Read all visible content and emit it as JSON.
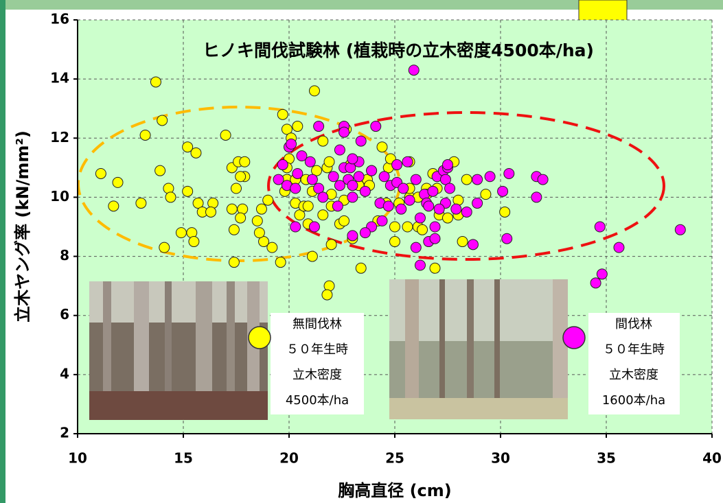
{
  "chart_data": {
    "type": "scatter",
    "title": "ヒノキ間伐試験林 (植栽時の立木密度4500本/ha)",
    "x_label": "胸高直径 (cm)",
    "y_label": "立木ヤング率 (kN/mm²)",
    "xlim": [
      10,
      40
    ],
    "xticks": [
      10,
      15,
      20,
      25,
      30,
      35,
      40
    ],
    "ylim": [
      2,
      16
    ],
    "yticks": [
      2,
      4,
      6,
      8,
      10,
      12,
      14,
      16
    ],
    "grid": true,
    "notes": [
      [
        "５０年生時",
        "立木密度",
        "4500本/ha"
      ],
      [
        "５０年生時",
        "立木密度",
        "1600本/ha"
      ]
    ],
    "series": [
      {
        "name": "無間伐林",
        "color": "#ffff00",
        "x": [
          11.1,
          11.9,
          11.7,
          13.0,
          13.2,
          13.7,
          14.0,
          13.9,
          14.3,
          14.4,
          14.1,
          14.9,
          15.2,
          15.2,
          15.4,
          15.6,
          15.5,
          15.7,
          15.9,
          16.4,
          16.3,
          17.0,
          17.3,
          17.5,
          17.3,
          17.6,
          17.8,
          17.7,
          17.4,
          17.4,
          17.9,
          17.9,
          17.7,
          18.5,
          18.7,
          18.8,
          18.6,
          19.0,
          19.2,
          19.6,
          19.7,
          19.9,
          20.1,
          20.0,
          19.9,
          19.8,
          19.9,
          20.4,
          20.3,
          20.3,
          20.5,
          20.7,
          20.9,
          20.8,
          21.1,
          20.9,
          21.2,
          21.3,
          21.6,
          21.6,
          21.8,
          21.9,
          22.0,
          22.0,
          21.1,
          21.9,
          21.8,
          22.0,
          22.4,
          22.6,
          22.7,
          22.6,
          23.0,
          22.9,
          23.3,
          23.4,
          23.7,
          23.8,
          24.2,
          24.4,
          24.7,
          24.8,
          24.6,
          25.0,
          25.0,
          25.2,
          25.6,
          25.7,
          25.7,
          25.7,
          26.1,
          26.3,
          26.1,
          26.5,
          26.5,
          26.8,
          27.0,
          26.9,
          27.1,
          27.5,
          27.8,
          28.0,
          28.2,
          28.0,
          28.4,
          29.3,
          30.2
        ],
        "values": [
          10.8,
          10.5,
          9.7,
          9.8,
          12.1,
          13.9,
          12.6,
          10.9,
          10.3,
          10.0,
          8.3,
          8.8,
          11.7,
          10.2,
          8.8,
          11.5,
          8.5,
          9.8,
          9.5,
          9.8,
          9.5,
          12.1,
          11.0,
          10.3,
          9.6,
          11.2,
          9.6,
          9.3,
          8.9,
          7.8,
          11.2,
          10.7,
          10.7,
          9.2,
          9.6,
          8.5,
          8.8,
          9.9,
          8.3,
          7.8,
          12.8,
          12.3,
          12.0,
          11.3,
          11.0,
          10.2,
          10.6,
          12.4,
          10.6,
          9.8,
          9.4,
          9.7,
          9.7,
          10.6,
          10.2,
          9.1,
          13.6,
          10.9,
          11.9,
          9.4,
          11.0,
          11.2,
          10.1,
          8.4,
          8.0,
          7.0,
          6.7,
          9.7,
          9.1,
          9.9,
          12.3,
          9.2,
          8.6,
          11.1,
          10.4,
          7.6,
          10.6,
          10.4,
          9.2,
          11.7,
          11.0,
          11.3,
          9.8,
          9.0,
          8.5,
          9.8,
          9.0,
          10.0,
          11.2,
          10.3,
          9.0,
          8.9,
          10.0,
          10.3,
          10.1,
          10.8,
          10.3,
          7.6,
          9.4,
          9.3,
          11.2,
          9.4,
          8.5,
          9.9,
          10.6,
          10.1,
          9.5
        ]
      },
      {
        "name": "間伐林",
        "color": "#ff00ff",
        "x": [
          25.9,
          21.4,
          22.6,
          24.1,
          22.6,
          20.0,
          20.1,
          19.7,
          20.6,
          21.0,
          22.4,
          23.4,
          22.6,
          22.9,
          23.3,
          23.9,
          19.5,
          20.4,
          19.9,
          20.3,
          21.1,
          21.4,
          21.6,
          22.1,
          22.4,
          22.8,
          23.0,
          23.0,
          23.3,
          23.6,
          23.9,
          24.5,
          24.8,
          25.1,
          25.4,
          25.6,
          25.7,
          26.0,
          26.4,
          26.5,
          26.8,
          27.0,
          27.3,
          27.4,
          27.6,
          27.4,
          27.1,
          26.2,
          26.0,
          26.2,
          26.6,
          26.9,
          27.5,
          27.9,
          28.4,
          28.7,
          28.9,
          28.9,
          29.5,
          30.1,
          30.4,
          30.3,
          31.7,
          32.0,
          31.7,
          34.7,
          34.5,
          34.8,
          35.6,
          38.5,
          21.2,
          20.3,
          22.3,
          24.3,
          24.7,
          24.4,
          23.9,
          23.6,
          23.0,
          23.0,
          25.1,
          25.3,
          26.6,
          26.9,
          27.5
        ],
        "values": [
          14.3,
          12.4,
          12.4,
          12.4,
          12.2,
          11.7,
          11.8,
          11.1,
          11.4,
          11.2,
          11.6,
          11.9,
          11.0,
          11.0,
          11.2,
          10.9,
          10.6,
          10.8,
          10.4,
          10.3,
          10.6,
          10.3,
          10.0,
          10.7,
          10.4,
          10.6,
          10.4,
          10.0,
          10.7,
          10.2,
          10.9,
          10.7,
          10.4,
          10.5,
          10.3,
          11.2,
          9.9,
          10.6,
          10.1,
          9.8,
          10.2,
          10.7,
          10.9,
          10.6,
          10.3,
          9.8,
          9.6,
          9.3,
          8.3,
          7.7,
          8.5,
          8.6,
          11.0,
          9.6,
          9.5,
          8.4,
          10.6,
          9.8,
          10.7,
          10.2,
          10.8,
          8.6,
          10.7,
          10.6,
          10.0,
          9.0,
          7.1,
          7.4,
          8.3,
          8.9,
          9.0,
          9.0,
          9.7,
          9.8,
          9.7,
          9.2,
          9.0,
          8.8,
          8.7,
          11.3,
          11.1,
          9.6,
          9.7,
          9.0,
          11.1
        ]
      }
    ]
  }
}
